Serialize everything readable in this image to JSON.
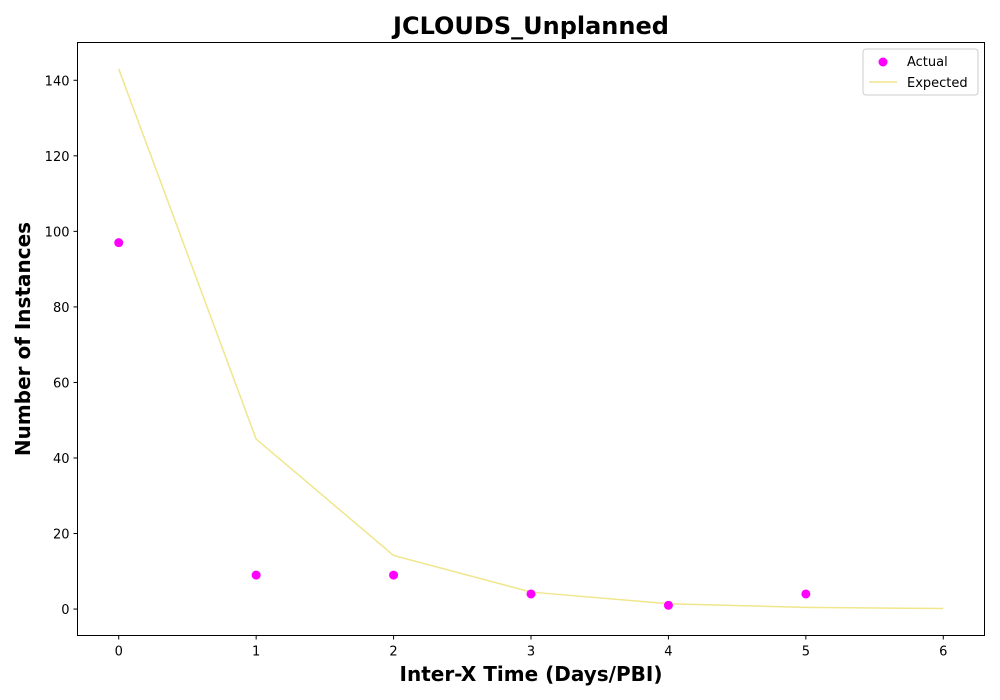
{
  "chart_data": {
    "type": "scatter",
    "title": "JCLOUDS_Unplanned",
    "xlabel": "Inter-X Time (Days/PBI)",
    "ylabel": "Number of Instances",
    "xlim": [
      -0.3,
      6.3
    ],
    "ylim": [
      -7,
      150
    ],
    "xticks": [
      0,
      1,
      2,
      3,
      4,
      5,
      6
    ],
    "yticks": [
      0,
      20,
      40,
      60,
      80,
      100,
      120,
      140
    ],
    "grid": false,
    "legend_position": "top-right",
    "series": [
      {
        "name": "Actual",
        "kind": "scatter",
        "color": "#ff00ff",
        "x": [
          0,
          1,
          2,
          3,
          4,
          5
        ],
        "y": [
          97,
          9,
          9,
          4,
          1,
          4
        ]
      },
      {
        "name": "Expected",
        "kind": "line",
        "color": "#f0e68c",
        "x": [
          0,
          1,
          2,
          3,
          4,
          5,
          6
        ],
        "y": [
          143,
          45,
          14.2,
          4.5,
          1.4,
          0.45,
          0.14
        ]
      }
    ]
  }
}
